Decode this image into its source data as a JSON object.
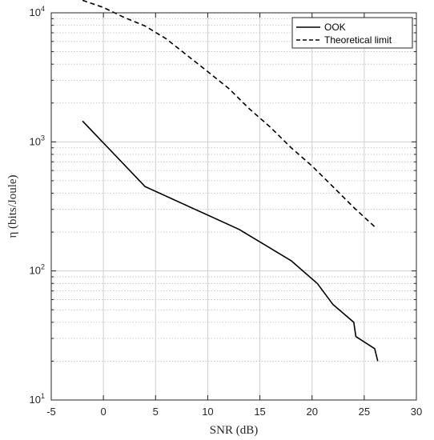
{
  "chart_data": {
    "type": "line",
    "title": "",
    "xlabel": "SNR (dB)",
    "ylabel": "η (bits/Joule)",
    "x_scale": "linear",
    "y_scale": "log",
    "xlim": [
      -5,
      30
    ],
    "ylim": [
      10,
      10000
    ],
    "x_ticks": [
      -5,
      0,
      5,
      10,
      15,
      20,
      25,
      30
    ],
    "y_ticks": [
      {
        "base": "10",
        "exp": "1",
        "value": 10
      },
      {
        "base": "10",
        "exp": "2",
        "value": 100
      },
      {
        "base": "10",
        "exp": "3",
        "value": 1000
      },
      {
        "base": "10",
        "exp": "4",
        "value": 10000
      }
    ],
    "grid": true,
    "minor_grid": true,
    "legend_position": "top-right",
    "series": [
      {
        "name": "OOK",
        "style": "solid",
        "color": "#000000",
        "x": [
          -2,
          4,
          13,
          18,
          20.5,
          22,
          24,
          24.2,
          26,
          26.3
        ],
        "y": [
          1450,
          450,
          210,
          120,
          80,
          55,
          40,
          31,
          25,
          20
        ]
      },
      {
        "name": "Theoretical limit",
        "style": "dashed",
        "color": "#000000",
        "x": [
          -2,
          0,
          2,
          4,
          6,
          8,
          10,
          12,
          14,
          16,
          18,
          20,
          22,
          24,
          26
        ],
        "y": [
          12500,
          11000,
          9200,
          7900,
          6300,
          4700,
          3500,
          2600,
          1800,
          1300,
          900,
          650,
          450,
          310,
          220
        ]
      }
    ]
  }
}
